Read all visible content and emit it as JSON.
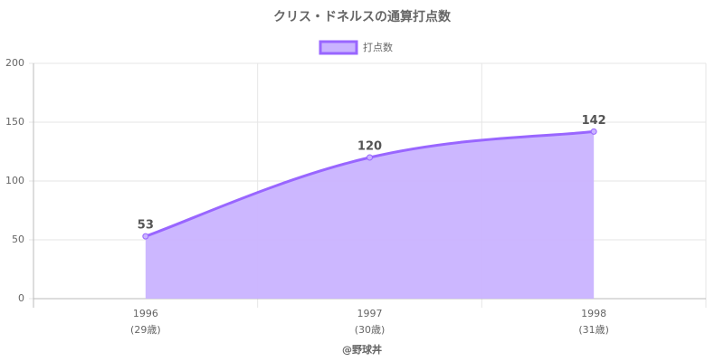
{
  "chart_data": {
    "type": "line",
    "title": "クリス・ドネルスの通算打点数",
    "categories": [
      [
        "1996",
        "(29歳)"
      ],
      [
        "1997",
        "(30歳)"
      ],
      [
        "1998",
        "(31歳)"
      ]
    ],
    "series": [
      {
        "name": "打点数",
        "color": "#9966ff",
        "fill": "#c9b3ff",
        "values": [
          53,
          120,
          142
        ]
      }
    ],
    "xlabel": "@野球丼",
    "ylim": [
      0,
      200
    ],
    "yticks": [
      0,
      50,
      100,
      150,
      200
    ],
    "grid": true,
    "legend": "top"
  }
}
